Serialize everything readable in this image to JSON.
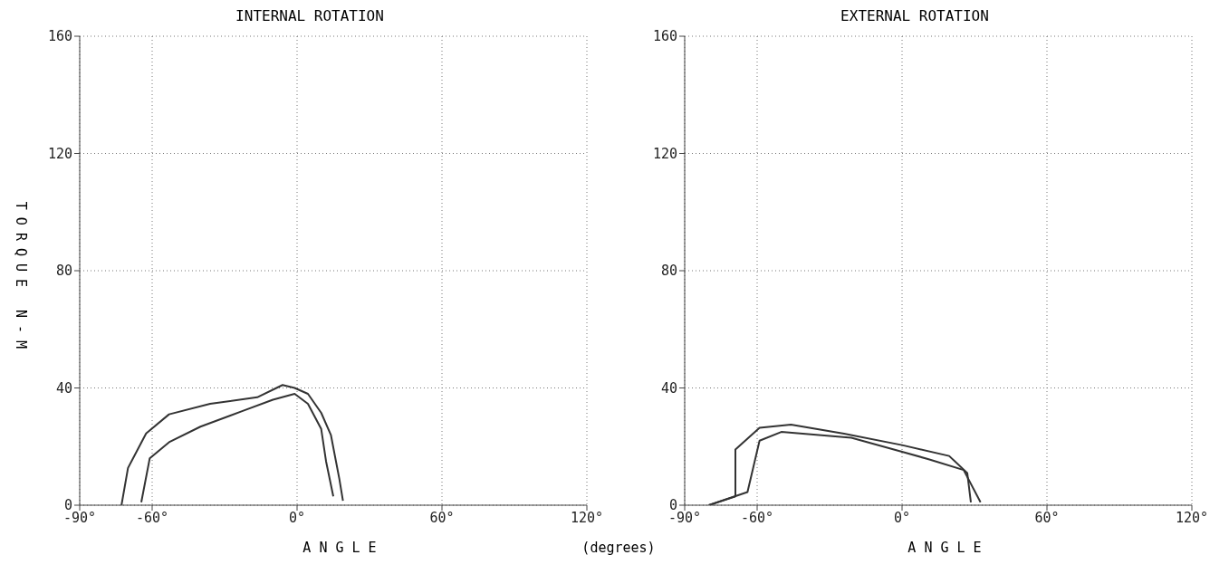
{
  "chart_data": [
    {
      "type": "line",
      "title": "INTERNAL ROTATION",
      "xlabel": "A N G L E",
      "ylabel": "TORQUE N-M",
      "annotations": [
        "(degrees)"
      ],
      "xlim": [
        -90,
        120
      ],
      "xticks": [
        {
          "value": -90,
          "label": "-90°"
        },
        {
          "value": -60,
          "label": "-60°"
        },
        {
          "value": 0,
          "label": "0°"
        },
        {
          "value": 60,
          "label": "60°"
        },
        {
          "value": 120,
          "label": "120°"
        }
      ],
      "ylim": [
        0,
        160
      ],
      "yticks": [
        0,
        40,
        80,
        120,
        160
      ],
      "grid": true,
      "legend": false,
      "marker": "none",
      "line_style": "solid",
      "series": [
        {
          "color": "#333333",
          "x": [
            -72.7,
            -70,
            -62.5,
            -53,
            -36,
            -16.5,
            -6,
            -1,
            4.5,
            10,
            14,
            17.5,
            19
          ],
          "values": [
            0,
            12.7,
            24.5,
            31,
            34.6,
            36.8,
            41,
            40,
            38,
            31.5,
            24,
            9,
            1.5
          ]
        },
        {
          "color": "#333333",
          "x": [
            -64.5,
            -61,
            -53,
            -40,
            -23,
            -10,
            -1,
            4.5,
            10,
            12,
            15
          ],
          "values": [
            1,
            16,
            21.5,
            26.8,
            32,
            36,
            38,
            34.6,
            26,
            15,
            3
          ]
        }
      ]
    },
    {
      "type": "line",
      "title": "EXTERNAL ROTATION",
      "xlabel": "A N G L E",
      "xlim": [
        -90,
        120
      ],
      "xticks": [
        {
          "value": -90,
          "label": "-90°"
        },
        {
          "value": -60,
          "label": "-60°"
        },
        {
          "value": 0,
          "label": "0°"
        },
        {
          "value": 60,
          "label": "60°"
        },
        {
          "value": 120,
          "label": "120°"
        }
      ],
      "ylim": [
        0,
        160
      ],
      "yticks": [
        0,
        40,
        80,
        120,
        160
      ],
      "grid": true,
      "legend": false,
      "marker": "none",
      "line_style": "solid",
      "series": [
        {
          "color": "#333333",
          "x": [
            -80,
            -69,
            -69,
            -59,
            -46,
            -24,
            0,
            19.5,
            27,
            28.5
          ],
          "values": [
            0,
            3,
            19,
            26.4,
            27.5,
            24.4,
            20.5,
            16.8,
            11,
            1
          ]
        },
        {
          "color": "#333333",
          "x": [
            -80,
            -64,
            -59,
            -50,
            -21,
            0,
            11,
            25.5,
            32.5
          ],
          "values": [
            0,
            4.5,
            22,
            25,
            23,
            18.2,
            15.7,
            12,
            1
          ]
        }
      ]
    }
  ]
}
